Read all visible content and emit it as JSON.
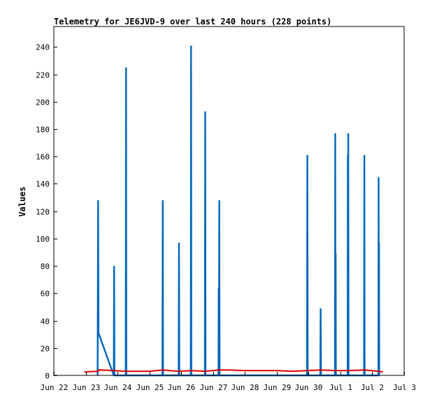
{
  "chart_data": {
    "type": "line",
    "title": "Telemetry for JE6JVD-9 over last 240 hours (228 points)",
    "xlabel": "",
    "ylabel": "Values",
    "ylim": [
      0,
      255
    ],
    "yticks": [
      0,
      20,
      40,
      60,
      80,
      100,
      120,
      140,
      160,
      180,
      200,
      220,
      240
    ],
    "xlim": [
      "2023-06-22",
      "2023-07-03"
    ],
    "xticks": [
      {
        "date": "2023-06-22",
        "label": "Jun 22"
      },
      {
        "date": "2023-06-23",
        "label": "Jun 23"
      },
      {
        "date": "2023-06-24",
        "label": "Jun 24"
      },
      {
        "date": "2023-06-25",
        "label": "Jun 25"
      },
      {
        "date": "2023-06-26",
        "label": "Jun 26"
      },
      {
        "date": "2023-06-27",
        "label": "Jun 27"
      },
      {
        "date": "2023-06-28",
        "label": "Jun 28"
      },
      {
        "date": "2023-06-29",
        "label": "Jun 29"
      },
      {
        "date": "2023-06-30",
        "label": "Jun 30"
      },
      {
        "date": "2023-07-01",
        "label": "Jul 1"
      },
      {
        "date": "2023-07-02",
        "label": "Jul 2"
      },
      {
        "date": "2023-07-03",
        "label": "Jul 3"
      }
    ],
    "grid": false,
    "legend": "none",
    "series": [
      {
        "color": "#0066bb",
        "points": [
          [
            "2023-06-23 09:00",
            0
          ],
          [
            "2023-06-23 09:20",
            128
          ],
          [
            "2023-06-23 09:40",
            31
          ],
          [
            "2023-06-23 21:10",
            0
          ],
          [
            "2023-06-23 21:25",
            80
          ],
          [
            "2023-06-23 21:40",
            0
          ],
          [
            "2023-06-24 06:10",
            0
          ],
          [
            "2023-06-24 06:25",
            225
          ],
          [
            "2023-06-24 06:40",
            0
          ],
          [
            "2023-06-25 09:50",
            0
          ],
          [
            "2023-06-25 10:05",
            128
          ],
          [
            "2023-06-25 10:20",
            0
          ],
          [
            "2023-06-25 22:05",
            0
          ],
          [
            "2023-06-25 22:20",
            97
          ],
          [
            "2023-06-25 22:35",
            0
          ],
          [
            "2023-06-26 07:10",
            0
          ],
          [
            "2023-06-26 07:25",
            241
          ],
          [
            "2023-06-26 07:40",
            0
          ],
          [
            "2023-06-26 17:50",
            0
          ],
          [
            "2023-06-26 18:05",
            193
          ],
          [
            "2023-06-26 18:20",
            0
          ],
          [
            "2023-06-27 04:05",
            0
          ],
          [
            "2023-06-27 04:15",
            64
          ],
          [
            "2023-06-27 04:25",
            0
          ],
          [
            "2023-06-27 04:40",
            128
          ],
          [
            "2023-06-27 04:55",
            0
          ],
          [
            "2023-06-29 22:50",
            0
          ],
          [
            "2023-06-29 23:05",
            161
          ],
          [
            "2023-06-29 23:20",
            0
          ],
          [
            "2023-06-30 08:50",
            0
          ],
          [
            "2023-06-30 09:05",
            49
          ],
          [
            "2023-06-30 09:20",
            0
          ],
          [
            "2023-06-30 19:50",
            0
          ],
          [
            "2023-06-30 20:05",
            177
          ],
          [
            "2023-06-30 20:15",
            0
          ],
          [
            "2023-06-30 20:25",
            89
          ],
          [
            "2023-06-30 20:35",
            0
          ],
          [
            "2023-07-01 05:25",
            0
          ],
          [
            "2023-07-01 05:35",
            161
          ],
          [
            "2023-07-01 05:45",
            0
          ],
          [
            "2023-07-01 05:55",
            177
          ],
          [
            "2023-07-01 06:05",
            0
          ],
          [
            "2023-07-01 17:45",
            0
          ],
          [
            "2023-07-01 18:00",
            161
          ],
          [
            "2023-07-01 18:15",
            0
          ],
          [
            "2023-07-02 04:35",
            0
          ],
          [
            "2023-07-02 04:45",
            145
          ],
          [
            "2023-07-02 04:55",
            0
          ],
          [
            "2023-07-02 05:05",
            97
          ],
          [
            "2023-07-02 05:15",
            0
          ]
        ]
      },
      {
        "color": "#dd0000",
        "points": [
          [
            "2023-06-22 23:00",
            2.5
          ],
          [
            "2023-06-23 09:20",
            3
          ],
          [
            "2023-06-23 10:00",
            4
          ],
          [
            "2023-06-23 21:30",
            3.5
          ],
          [
            "2023-06-24 06:30",
            3
          ],
          [
            "2023-06-25 00:00",
            3
          ],
          [
            "2023-06-25 10:00",
            4
          ],
          [
            "2023-06-25 22:00",
            3
          ],
          [
            "2023-06-26 07:30",
            3.5
          ],
          [
            "2023-06-26 18:00",
            3
          ],
          [
            "2023-06-27 04:40",
            4
          ],
          [
            "2023-06-27 12:00",
            4
          ],
          [
            "2023-06-28 00:00",
            3.5
          ],
          [
            "2023-06-29 00:00",
            3.5
          ],
          [
            "2023-06-29 12:00",
            3
          ],
          [
            "2023-06-29 23:00",
            3.5
          ],
          [
            "2023-06-30 09:00",
            4
          ],
          [
            "2023-06-30 20:00",
            3.5
          ],
          [
            "2023-07-01 05:40",
            3.5
          ],
          [
            "2023-07-01 18:00",
            4
          ],
          [
            "2023-07-02 04:45",
            3
          ],
          [
            "2023-07-02 08:00",
            2.5
          ]
        ]
      }
    ]
  }
}
